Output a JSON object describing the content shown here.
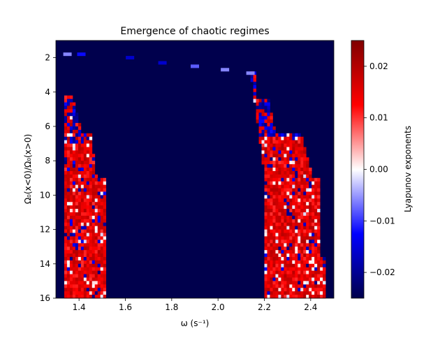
{
  "chart_data": {
    "type": "heatmap",
    "title": "Emergence of chaotic regimes",
    "xlabel": "ω (s⁻¹)",
    "ylabel": "Ω₀(x<0)/Ω₀(x>0)",
    "xlim": [
      1.3,
      2.5
    ],
    "ylim": [
      16,
      1
    ],
    "y_inverted": true,
    "x_ticks": [
      {
        "value": 1.4,
        "label": "1.4"
      },
      {
        "value": 1.6,
        "label": "1.6"
      },
      {
        "value": 1.8,
        "label": "1.8"
      },
      {
        "value": 2.0,
        "label": "2.0"
      },
      {
        "value": 2.2,
        "label": "2.2"
      },
      {
        "value": 2.4,
        "label": "2.4"
      }
    ],
    "y_ticks": [
      {
        "value": 2,
        "label": "2"
      },
      {
        "value": 4,
        "label": "4"
      },
      {
        "value": 6,
        "label": "6"
      },
      {
        "value": 8,
        "label": "8"
      },
      {
        "value": 10,
        "label": "10"
      },
      {
        "value": 12,
        "label": "12"
      },
      {
        "value": 14,
        "label": "14"
      },
      {
        "value": 16,
        "label": "16"
      }
    ],
    "colorbar": {
      "label": "Lyapunov exponents",
      "cmap": "seismic",
      "vmin": -0.025,
      "vmax": 0.025,
      "ticks": [
        {
          "value": 0.02,
          "label": "0.02"
        },
        {
          "value": 0.01,
          "label": "0.01"
        },
        {
          "value": 0.0,
          "label": "0.00"
        },
        {
          "value": -0.01,
          "label": "−0.01"
        },
        {
          "value": -0.02,
          "label": "−0.02"
        }
      ]
    },
    "background_value": -0.025,
    "approximate_regions": [
      {
        "name": "left-chaotic-lobe",
        "omega_range": [
          1.33,
          1.52
        ],
        "ratio_range": [
          4.3,
          16
        ],
        "value_approx": 0.016
      },
      {
        "name": "right-chaotic-lobe",
        "omega_range": [
          2.13,
          2.46
        ],
        "ratio_range": [
          2.8,
          16
        ],
        "value_approx": 0.016
      },
      {
        "name": "onset-ridge",
        "points": [
          {
            "omega": 1.35,
            "ratio": 1.8,
            "value": -0.006
          },
          {
            "omega": 1.41,
            "ratio": 1.8,
            "value": -0.012
          },
          {
            "omega": 1.62,
            "ratio": 2.0,
            "value": -0.016
          },
          {
            "omega": 1.76,
            "ratio": 2.3,
            "value": -0.016
          },
          {
            "omega": 1.9,
            "ratio": 2.5,
            "value": -0.008
          },
          {
            "omega": 2.03,
            "ratio": 2.7,
            "value": -0.006
          },
          {
            "omega": 2.14,
            "ratio": 2.9,
            "value": -0.006
          }
        ]
      }
    ]
  }
}
